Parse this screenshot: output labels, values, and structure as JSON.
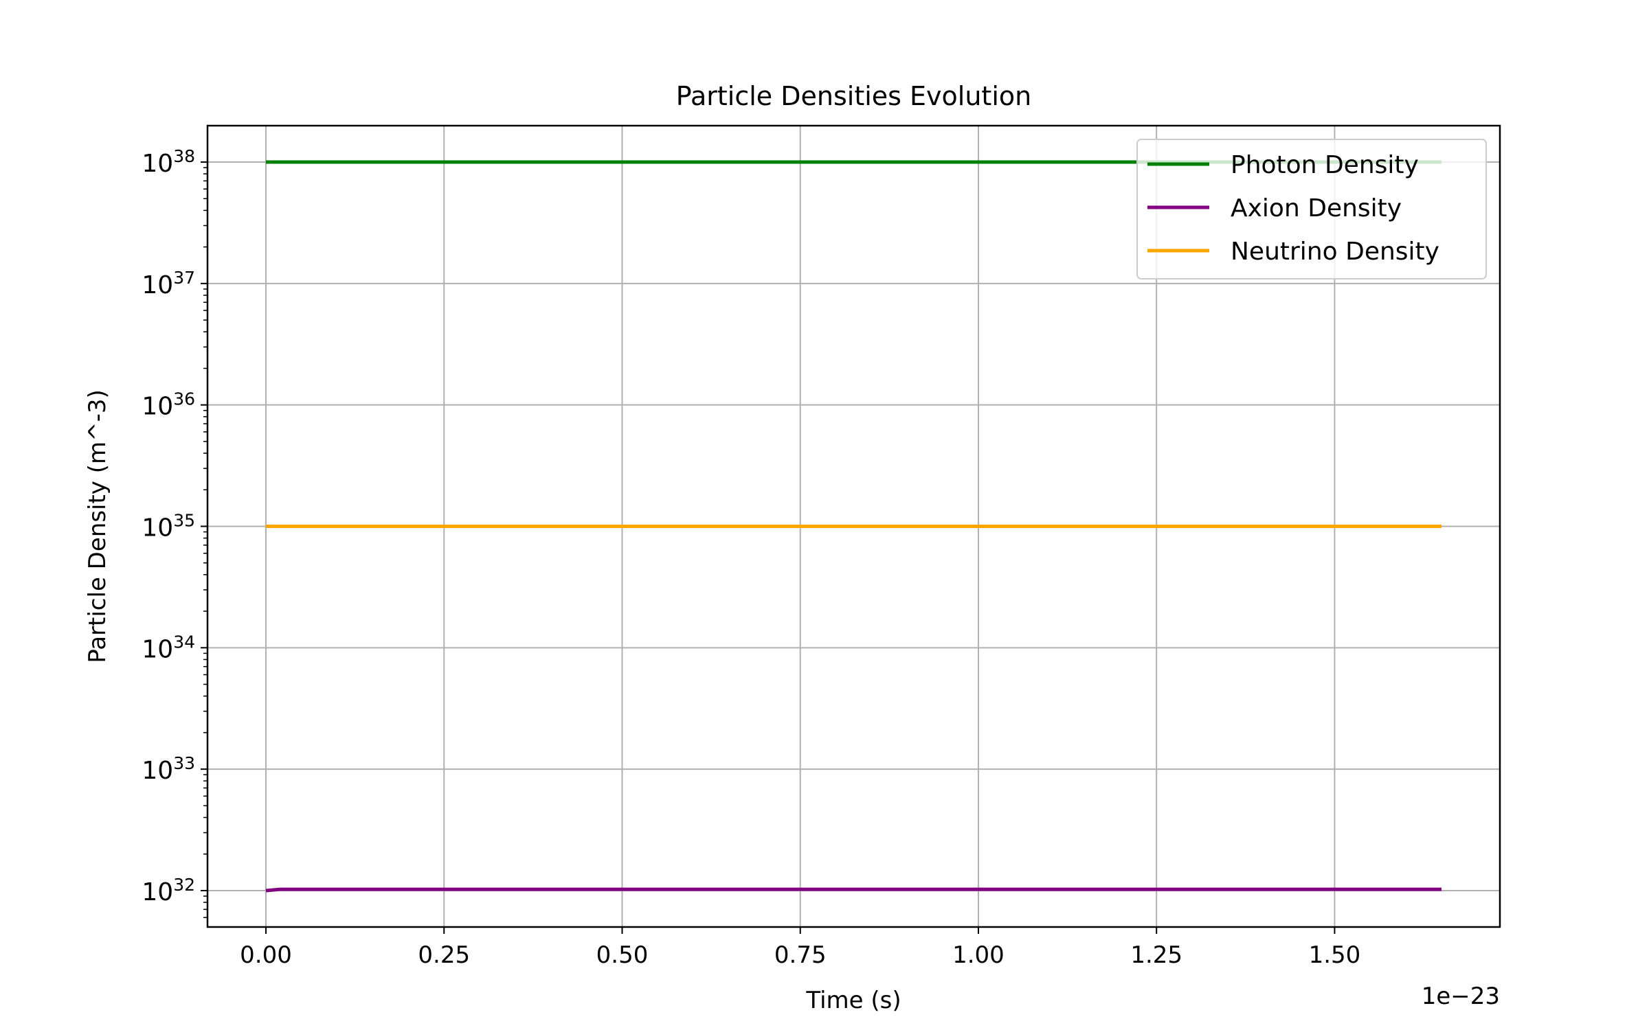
{
  "chart_data": {
    "type": "line",
    "title": "Particle Densities Evolution",
    "xlabel": "Time (s)",
    "ylabel": "Particle Density (m^-3)",
    "x_offset_label": "1e−23",
    "y_scale": "log",
    "xlim": [
      -0.082,
      1.732
    ],
    "ylim_exponent": [
      31.7,
      38.3
    ],
    "x_ticks": [
      "0.00",
      "0.25",
      "0.50",
      "0.75",
      "1.00",
      "1.25",
      "1.50"
    ],
    "x_tick_values": [
      0,
      0.25,
      0.5,
      0.75,
      1.0,
      1.25,
      1.5
    ],
    "y_tick_exponents": [
      32,
      33,
      34,
      35,
      36,
      37,
      38
    ],
    "y_tick_base": "10",
    "grid": true,
    "legend_position": "top-right",
    "series": [
      {
        "name": "Photon Density",
        "color": "#008000",
        "x": [
          0,
          1.65
        ],
        "y_exponent": [
          38,
          38
        ]
      },
      {
        "name": "Axion Density",
        "color": "#800080",
        "x": [
          0,
          0.02,
          1.65
        ],
        "y_exponent": [
          32,
          32.01,
          32.01
        ]
      },
      {
        "name": "Neutrino Density",
        "color": "#FFA500",
        "x": [
          0,
          1.65
        ],
        "y_exponent": [
          35,
          35
        ]
      }
    ]
  }
}
